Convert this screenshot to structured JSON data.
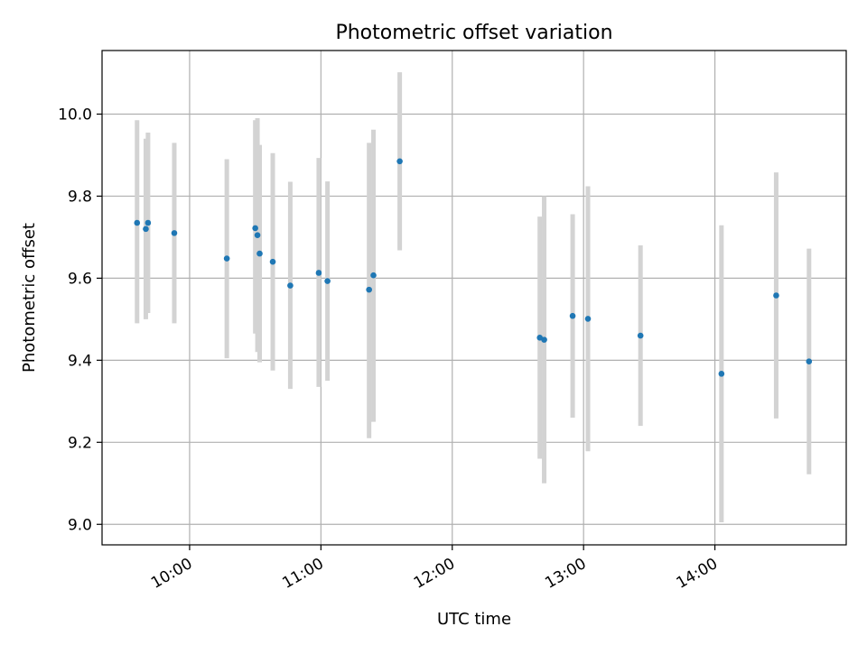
{
  "chart_data": {
    "type": "scatter",
    "title": "Photometric offset variation",
    "xlabel": "UTC time",
    "ylabel": "Photometric offset",
    "xlim": [
      "09:20",
      "15:00"
    ],
    "ylim": [
      8.95,
      10.155
    ],
    "grid": true,
    "x_ticks": [
      "10:00",
      "11:00",
      "12:00",
      "13:00",
      "14:00"
    ],
    "y_ticks": [
      "9.0",
      "9.2",
      "9.4",
      "9.6",
      "9.8",
      "10.0"
    ],
    "colors": {
      "point": "#1f77b4",
      "errorbar": "#d3d3d3",
      "grid": "#b0b0b0"
    },
    "points": [
      {
        "x": "09:36",
        "y": 9.735,
        "lo": 9.49,
        "hi": 9.985
      },
      {
        "x": "09:40",
        "y": 9.72,
        "lo": 9.5,
        "hi": 9.94
      },
      {
        "x": "09:41",
        "y": 9.735,
        "lo": 9.515,
        "hi": 9.955
      },
      {
        "x": "09:53",
        "y": 9.71,
        "lo": 9.49,
        "hi": 9.93
      },
      {
        "x": "10:17",
        "y": 9.648,
        "lo": 9.405,
        "hi": 9.89
      },
      {
        "x": "10:30",
        "y": 9.722,
        "lo": 9.465,
        "hi": 9.985
      },
      {
        "x": "10:31",
        "y": 9.705,
        "lo": 9.42,
        "hi": 9.99
      },
      {
        "x": "10:32",
        "y": 9.66,
        "lo": 9.395,
        "hi": 9.925
      },
      {
        "x": "10:38",
        "y": 9.64,
        "lo": 9.375,
        "hi": 9.905
      },
      {
        "x": "10:46",
        "y": 9.582,
        "lo": 9.33,
        "hi": 9.835
      },
      {
        "x": "10:59",
        "y": 9.613,
        "lo": 9.335,
        "hi": 9.893
      },
      {
        "x": "11:03",
        "y": 9.593,
        "lo": 9.35,
        "hi": 9.836
      },
      {
        "x": "11:22",
        "y": 9.572,
        "lo": 9.21,
        "hi": 9.93
      },
      {
        "x": "11:24",
        "y": 9.607,
        "lo": 9.25,
        "hi": 9.962
      },
      {
        "x": "11:36",
        "y": 9.885,
        "lo": 9.668,
        "hi": 10.102
      },
      {
        "x": "12:40",
        "y": 9.455,
        "lo": 9.16,
        "hi": 9.75
      },
      {
        "x": "12:42",
        "y": 9.45,
        "lo": 9.1,
        "hi": 9.8
      },
      {
        "x": "12:55",
        "y": 9.508,
        "lo": 9.26,
        "hi": 9.756
      },
      {
        "x": "13:02",
        "y": 9.501,
        "lo": 9.178,
        "hi": 9.824
      },
      {
        "x": "13:26",
        "y": 9.46,
        "lo": 9.24,
        "hi": 9.68
      },
      {
        "x": "14:03",
        "y": 9.367,
        "lo": 9.005,
        "hi": 9.729
      },
      {
        "x": "14:28",
        "y": 9.558,
        "lo": 9.258,
        "hi": 9.858
      },
      {
        "x": "14:43",
        "y": 9.397,
        "lo": 9.122,
        "hi": 9.672
      }
    ]
  }
}
